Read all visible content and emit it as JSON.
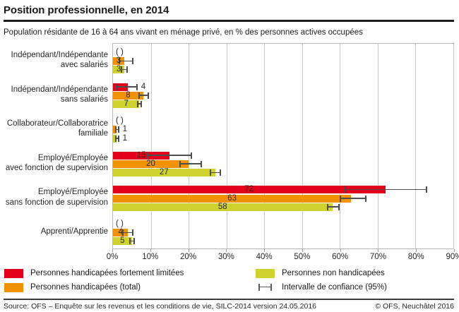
{
  "title": "Position professionnelle, en 2014",
  "subtitle": "Population résidante de 16 à 64 ans vivant en ménage privé, en % des personnes actives occupées",
  "footer": {
    "source": "Source: OFS – Enquête sur les revenus et les conditions de vie, SILC-2014 version 24.05.2016",
    "copyright": "© OFS, Neuchâtel 2016"
  },
  "colors": {
    "red": "#e2001a",
    "orange": "#f39200",
    "yellowgreen": "#cfd22e",
    "grid": "#c9c9c9",
    "plot_border": "#b5b5b5",
    "error_bar": "#4d4d4d"
  },
  "chart_data": {
    "type": "bar",
    "orientation": "horizontal",
    "title": "Position professionnelle, en 2014",
    "xlabel": "% des personnes actives occupées",
    "xlim": [
      0,
      90
    ],
    "x_ticks": [
      "0%",
      "10%",
      "20%",
      "30%",
      "40%",
      "50%",
      "60%",
      "70%",
      "80%",
      "90%"
    ],
    "grid": true,
    "suppressed_marker": "( )",
    "ci_label": "Intervalle de confiance (95%)",
    "legend_position": "bottom",
    "categories": [
      "Indépendant/Indépendante\navec salariés",
      "Indépendant/Indépendante\nsans salariés",
      "Collaborateur/Collaboratrice\nfamiliale",
      "Employé/Employée\navec fonction de supervision",
      "Employé/Employée\nsans fonction de supervision",
      "Apprenti/Apprentie"
    ],
    "series": [
      {
        "name": "Personnes handicapées fortement limitées",
        "color": "#e2001a",
        "values": [
          null,
          4,
          null,
          15,
          72,
          null
        ],
        "ci": [
          null,
          [
            0.5,
            6.5
          ],
          null,
          [
            9,
            21
          ],
          [
            61,
            83
          ],
          null
        ],
        "label_out": [
          false,
          true,
          false,
          false,
          false,
          false
        ]
      },
      {
        "name": "Personnes handicapées (total)",
        "color": "#f39200",
        "values": [
          3,
          8,
          1,
          20,
          63,
          4
        ],
        "ci": [
          [
            1.5,
            5.5
          ],
          [
            6.8,
            9.5
          ],
          [
            0.6,
            1.6
          ],
          [
            17.5,
            23.5
          ],
          [
            60,
            67
          ],
          [
            2.5,
            5.5
          ]
        ],
        "label_out": [
          false,
          false,
          true,
          false,
          false,
          false
        ]
      },
      {
        "name": "Personnes non handicapées",
        "color": "#cfd22e",
        "values": [
          3,
          7,
          1,
          27,
          58,
          5
        ],
        "ci": [
          [
            2,
            4
          ],
          [
            6.3,
            7.7
          ],
          [
            0.6,
            1.6
          ],
          [
            25.5,
            28.5
          ],
          [
            56.5,
            60
          ],
          [
            4.3,
            5.7
          ]
        ],
        "label_out": [
          false,
          false,
          true,
          false,
          false,
          false
        ]
      }
    ]
  }
}
